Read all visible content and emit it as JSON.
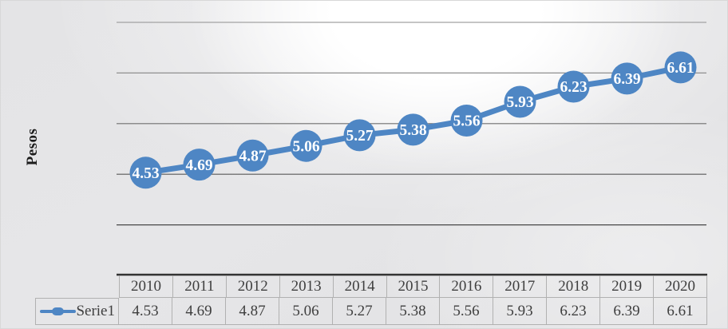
{
  "chart_data": {
    "type": "line",
    "title": "",
    "xlabel": "",
    "ylabel": "Pesos",
    "categories": [
      "2010",
      "2011",
      "2012",
      "2013",
      "2014",
      "2015",
      "2016",
      "2017",
      "2018",
      "2019",
      "2020"
    ],
    "series": [
      {
        "name": "Serie1",
        "values": [
          4.53,
          4.69,
          4.87,
          5.06,
          5.27,
          5.38,
          5.56,
          5.93,
          6.23,
          6.39,
          6.61
        ]
      }
    ],
    "data_labels_visible": true,
    "grid_on": true,
    "y_tick_labels_visible": false,
    "ylim_estimated": [
      2.5,
      7.5
    ],
    "gridline_values_estimated": [
      3.5,
      4.5,
      5.5,
      6.5,
      7.5
    ],
    "legend_position": "bottom data table",
    "colors": {
      "series": "#4e86c4",
      "data_label_text": "#ffffff",
      "axis_line": "#333333",
      "table_border": "#b1b1b1",
      "table_text": "#3f3f3f",
      "axis_title_text": "#1c1c1c",
      "gridlines": [
        "#474747",
        "#595959",
        "#6f6f6f",
        "#8f8f8f",
        "#a2a2a2"
      ]
    }
  }
}
